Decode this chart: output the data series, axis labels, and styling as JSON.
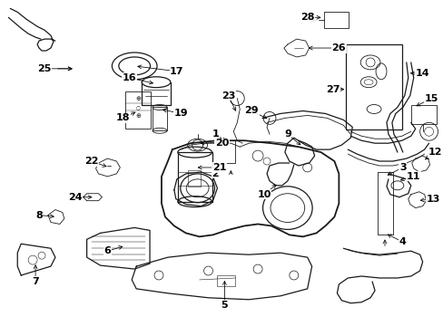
{
  "bg": "#ffffff",
  "dc": "#1a1a1a",
  "figw": 4.89,
  "figh": 3.6,
  "dpi": 100,
  "lw_thin": 0.6,
  "lw_med": 0.9,
  "lw_thick": 1.3,
  "label_fs": 8.0
}
